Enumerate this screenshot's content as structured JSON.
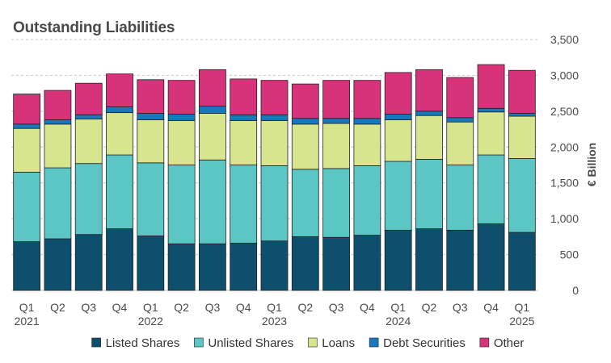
{
  "chart_data": {
    "type": "bar",
    "stacked": true,
    "title": "Outstanding Liabilities",
    "ylabel": "€ Billion",
    "xlabel": "",
    "ylim": [
      0,
      3500
    ],
    "yticks": [
      0,
      500,
      1000,
      1500,
      2000,
      2500,
      3000,
      3500
    ],
    "ytick_labels": [
      "0",
      "500",
      "1,000",
      "1,500",
      "2,000",
      "2,500",
      "3,000",
      "3,500"
    ],
    "grid": "horizontal dashed",
    "legend_position": "bottom",
    "categories": [
      "Q1 2021",
      "Q2 2021",
      "Q3 2021",
      "Q4 2021",
      "Q1 2022",
      "Q2 2022",
      "Q3 2022",
      "Q4 2022",
      "Q1 2023",
      "Q2 2023",
      "Q3 2023",
      "Q4 2023",
      "Q1 2024",
      "Q2 2024",
      "Q3 2024",
      "Q4 2024",
      "Q1 2025"
    ],
    "quarter_labels": [
      "Q1",
      "Q2",
      "Q3",
      "Q4",
      "Q1",
      "Q2",
      "Q3",
      "Q4",
      "Q1",
      "Q2",
      "Q3",
      "Q4",
      "Q1",
      "Q2",
      "Q3",
      "Q4",
      "Q1"
    ],
    "year_labels": [
      {
        "index": 0,
        "label": "2021"
      },
      {
        "index": 4,
        "label": "2022"
      },
      {
        "index": 8,
        "label": "2023"
      },
      {
        "index": 12,
        "label": "2024"
      },
      {
        "index": 16,
        "label": "2025"
      }
    ],
    "series": [
      {
        "name": "Listed Shares",
        "color": "#0d4f6c",
        "values": [
          680,
          720,
          780,
          860,
          760,
          650,
          650,
          660,
          690,
          750,
          740,
          770,
          840,
          860,
          840,
          930,
          810
        ]
      },
      {
        "name": "Unlisted Shares",
        "color": "#5cc6c4",
        "values": [
          970,
          990,
          990,
          1030,
          1020,
          1100,
          1170,
          1090,
          1050,
          940,
          960,
          970,
          960,
          970,
          910,
          960,
          1030
        ]
      },
      {
        "name": "Loans",
        "color": "#d8e58f",
        "values": [
          610,
          610,
          620,
          590,
          600,
          620,
          650,
          620,
          630,
          630,
          630,
          580,
          580,
          610,
          600,
          600,
          590
        ]
      },
      {
        "name": "Debt Securities",
        "color": "#1778be",
        "values": [
          60,
          60,
          60,
          80,
          90,
          90,
          100,
          80,
          80,
          80,
          70,
          80,
          80,
          60,
          60,
          50,
          40
        ]
      },
      {
        "name": "Other",
        "color": "#d6337b",
        "values": [
          420,
          410,
          440,
          460,
          470,
          470,
          510,
          500,
          480,
          480,
          530,
          530,
          580,
          580,
          560,
          610,
          600
        ]
      }
    ]
  }
}
